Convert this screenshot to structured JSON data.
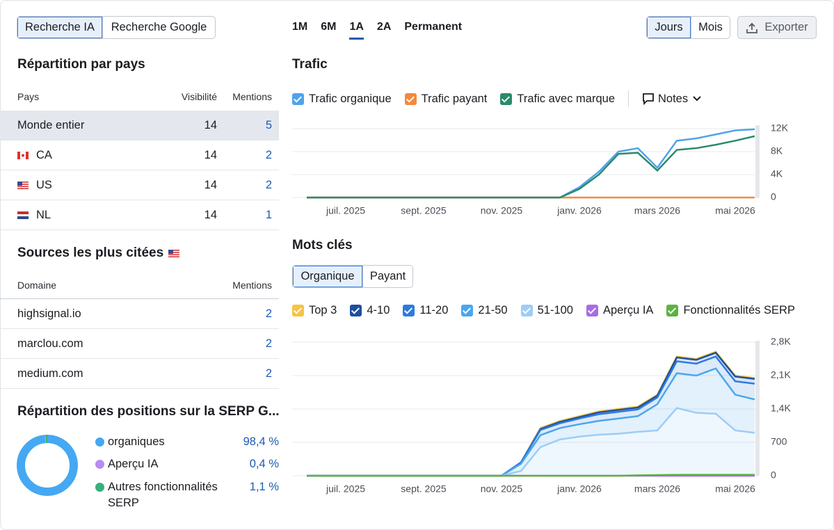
{
  "search_tabs": [
    "Recherche IA",
    "Recherche Google"
  ],
  "periods": [
    "1M",
    "6M",
    "1A",
    "2A",
    "Permanent"
  ],
  "granularity": [
    "Jours",
    "Mois"
  ],
  "export": "Exporter",
  "countries": {
    "title": "Répartition par pays",
    "columns": [
      "Pays",
      "Visibilité",
      "Mentions"
    ],
    "rows": [
      [
        "Monde entier",
        14,
        5
      ],
      [
        "CA",
        14,
        2
      ],
      [
        "US",
        14,
        2
      ],
      [
        "NL",
        14,
        1
      ]
    ]
  },
  "sources": {
    "title": "Sources les plus citées",
    "columns": [
      "Domaine",
      "Mentions"
    ],
    "rows": [
      [
        "highsignal.io",
        2
      ],
      [
        "marclou.com",
        2
      ],
      [
        "medium.com",
        2
      ]
    ]
  },
  "notes": "Notes",
  "keyword_tabs": [
    "Organique",
    "Payant"
  ],
  "chart_data": [
    {
      "type": "pie",
      "title": "Répartition des positions sur la SERP G...",
      "categories": [
        "organiques",
        "Aperçu IA",
        "Autres fonctionnalités SERP"
      ],
      "values": [
        98.4,
        0.4,
        1.1
      ],
      "value_labels": [
        "98,4 %",
        "0,4 %",
        "1,1 %"
      ],
      "colors": [
        "#45a8f2",
        "#b88cf2",
        "#35b07f"
      ]
    },
    {
      "type": "line",
      "title": "Trafic",
      "categories": [
        null,
        null,
        "juil. 2025",
        null,
        null,
        null,
        "sept. 2025",
        null,
        null,
        null,
        "nov. 2025",
        null,
        null,
        null,
        "janv. 2026",
        null,
        null,
        null,
        "mars 2026",
        null,
        null,
        null,
        "mai 2026",
        null
      ],
      "series": [
        {
          "name": "Trafic organique",
          "color": "#4fa3ec",
          "values": [
            0,
            0,
            0,
            0,
            0,
            0,
            0,
            0,
            0,
            0,
            0,
            0,
            0,
            0,
            1800,
            4500,
            8000,
            8600,
            5200,
            9900,
            10300,
            11000,
            11700,
            11900
          ]
        },
        {
          "name": "Trafic payant",
          "color": "#f5883b",
          "values": [
            0,
            0,
            0,
            0,
            0,
            0,
            0,
            0,
            0,
            0,
            0,
            0,
            0,
            0,
            0,
            0,
            0,
            0,
            0,
            0,
            0,
            0,
            0,
            0
          ]
        },
        {
          "name": "Trafic avec marque",
          "color": "#2a8a6c",
          "values": [
            0,
            0,
            0,
            0,
            0,
            0,
            0,
            0,
            0,
            0,
            0,
            0,
            0,
            0,
            1500,
            4000,
            7600,
            7800,
            4700,
            8300,
            8600,
            9200,
            9900,
            10700
          ]
        }
      ],
      "ylim": [
        0,
        12000
      ],
      "yticks": [
        0,
        {
          "value": 4000,
          "label": "4K"
        },
        {
          "value": 8000,
          "label": "8K"
        },
        {
          "value": 12000,
          "label": "12K"
        }
      ],
      "grid": true
    },
    {
      "type": "area",
      "title": "Mots clés",
      "categories": [
        null,
        null,
        "juil. 2025",
        null,
        null,
        null,
        "sept. 2025",
        null,
        null,
        null,
        "nov. 2025",
        null,
        null,
        null,
        "janv. 2026",
        null,
        null,
        null,
        "mars 2026",
        null,
        null,
        null,
        "mai 2026",
        null
      ],
      "series": [
        {
          "name": "Top 3",
          "color": "#f6c343",
          "stacked": true,
          "values": [
            0,
            0,
            0,
            0,
            0,
            0,
            0,
            0,
            0,
            0,
            0,
            0,
            20,
            20,
            20,
            20,
            20,
            20,
            20,
            20,
            20,
            20,
            20,
            20
          ]
        },
        {
          "name": "4-10",
          "color": "#1d4f9f",
          "stacked": true,
          "values": [
            0,
            0,
            0,
            0,
            0,
            0,
            0,
            0,
            0,
            0,
            0,
            0,
            20,
            30,
            30,
            40,
            40,
            40,
            40,
            80,
            80,
            80,
            100,
            100
          ]
        },
        {
          "name": "11-20",
          "color": "#2b7be0",
          "stacked": true,
          "values": [
            0,
            0,
            0,
            0,
            0,
            0,
            0,
            0,
            0,
            0,
            0,
            30,
            110,
            100,
            120,
            140,
            140,
            140,
            140,
            250,
            250,
            250,
            280,
            330
          ]
        },
        {
          "name": "21-50",
          "color": "#4aa6ef",
          "stacked": true,
          "values": [
            0,
            0,
            0,
            0,
            0,
            0,
            0,
            0,
            0,
            0,
            0,
            150,
            250,
            240,
            260,
            290,
            320,
            330,
            550,
            730,
            780,
            950,
            750,
            700
          ]
        },
        {
          "name": "51-100",
          "color": "#9dcdf6",
          "stacked": true,
          "values": [
            0,
            0,
            0,
            0,
            0,
            0,
            0,
            0,
            0,
            0,
            0,
            100,
            600,
            760,
            820,
            860,
            880,
            920,
            950,
            1420,
            1320,
            1300,
            950,
            900
          ]
        },
        {
          "name": "Aperçu IA",
          "color": "#a86be6",
          "stacked": false,
          "values": [
            0,
            0,
            0,
            0,
            0,
            0,
            0,
            0,
            0,
            0,
            0,
            0,
            0,
            0,
            0,
            0,
            0,
            0,
            0,
            0,
            0,
            0,
            0,
            0
          ]
        },
        {
          "name": "Fonctionnalités SERP",
          "color": "#5cb340",
          "stacked": false,
          "values": [
            0,
            0,
            0,
            0,
            0,
            0,
            0,
            0,
            0,
            0,
            0,
            0,
            0,
            0,
            0,
            0,
            0,
            10,
            15,
            20,
            20,
            20,
            20,
            20
          ]
        }
      ],
      "ylim": [
        0,
        2800
      ],
      "yticks": [
        0,
        700,
        {
          "value": 1400,
          "label": "1,4K"
        },
        {
          "value": 2100,
          "label": "2,1K"
        },
        {
          "value": 2800,
          "label": "2,8K"
        }
      ],
      "grid": true
    }
  ]
}
